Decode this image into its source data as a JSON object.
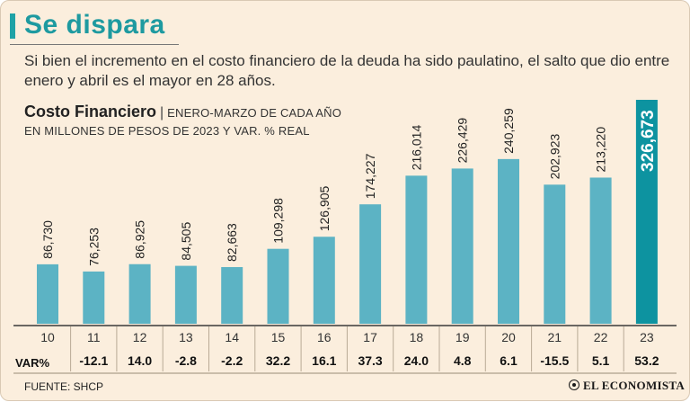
{
  "header": {
    "title": "Se dispara",
    "subtitle": "Si bien el incremento en el costo financiero de la deuda ha sido paulatino, el salto que dio entre enero y abril es el mayor en 28 años."
  },
  "chart_data": {
    "type": "bar",
    "title": "Costo Financiero",
    "title_separator": "|",
    "title_note": "ENERO-MARZO DE CADA AÑO",
    "units_label": "EN MILLONES DE PESOS DE 2023 Y VAR. % REAL",
    "categories": [
      "10",
      "11",
      "12",
      "13",
      "14",
      "15",
      "16",
      "17",
      "18",
      "19",
      "20",
      "21",
      "22",
      "23"
    ],
    "values": [
      86730,
      76253,
      86925,
      84505,
      82663,
      109298,
      126905,
      174227,
      216014,
      226429,
      240259,
      202923,
      213220,
      326673
    ],
    "value_labels": [
      "86,730",
      "76,253",
      "86,925",
      "84,505",
      "82,663",
      "109,298",
      "126,905",
      "174,227",
      "216,014",
      "226,429",
      "240,259",
      "202,923",
      "213,220",
      "326,673"
    ],
    "var_label": "VAR%",
    "var_values": [
      "-12.1",
      "14.0",
      "-2.8",
      "-2.2",
      "32.2",
      "16.1",
      "37.3",
      "24.0",
      "4.8",
      "6.1",
      "-15.5",
      "5.1",
      "53.2"
    ],
    "ylim": [
      0,
      326673
    ],
    "highlight_index": 13,
    "colors": {
      "bar": "#5cb3c4",
      "highlight": "#0d93a0",
      "highlight_label": "#ffffff"
    },
    "grid": false
  },
  "footer": {
    "source": "FUENTE: SHCP",
    "brand": "EL ECONOMISTA"
  }
}
